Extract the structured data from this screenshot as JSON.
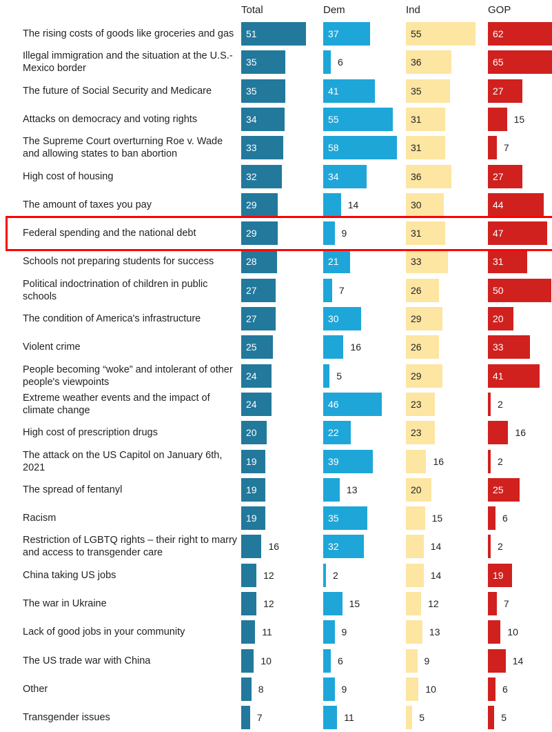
{
  "chart_data": {
    "type": "bar",
    "orientation": "horizontal",
    "columns": [
      "Total",
      "Dem",
      "Ind",
      "GOP"
    ],
    "colors": {
      "Total": "#22799c",
      "Dem": "#1ea6d9",
      "Ind": "#fde5a2",
      "GOP": "#d0211f",
      "highlight": "#ff0000"
    },
    "highlighted_category": "Federal spending and the national debt",
    "categories": [
      "The rising costs of goods like groceries and gas",
      "Illegal immigration and the situation at the U.S.-Mexico border",
      "The future of Social Security and Medicare",
      "Attacks on democracy and voting rights",
      "The Supreme Court overturning Roe v. Wade and allowing states to ban abortion",
      "High cost of housing",
      "The amount of taxes you pay",
      "Federal spending and the national debt",
      "Schools not preparing students for success",
      "Political indoctrination of children in public schools",
      "The condition of America's infrastructure",
      "Violent crime",
      "People becoming “woke” and intolerant of other people's viewpoints",
      "Extreme weather events and the impact of climate change",
      "High cost of prescription drugs",
      "The attack on the US Capitol on January 6th, 2021",
      "The spread of fentanyl",
      "Racism",
      "Restriction of LGBTQ rights – their right to marry and access to transgender care",
      "China taking US jobs",
      "The war in Ukraine",
      "Lack of good jobs in your community",
      "The US trade war with China",
      "Other",
      "Transgender issues"
    ],
    "series": [
      {
        "name": "Total",
        "values": [
          51,
          35,
          35,
          34,
          33,
          32,
          29,
          29,
          28,
          27,
          27,
          25,
          24,
          24,
          20,
          19,
          19,
          19,
          16,
          12,
          12,
          11,
          10,
          8,
          7
        ]
      },
      {
        "name": "Dem",
        "values": [
          37,
          6,
          41,
          55,
          58,
          34,
          14,
          9,
          21,
          7,
          30,
          16,
          5,
          46,
          22,
          39,
          13,
          35,
          32,
          2,
          15,
          9,
          6,
          9,
          11
        ]
      },
      {
        "name": "Ind",
        "values": [
          55,
          36,
          35,
          31,
          31,
          36,
          30,
          31,
          33,
          26,
          29,
          26,
          29,
          23,
          23,
          16,
          20,
          15,
          14,
          14,
          12,
          13,
          9,
          10,
          5
        ]
      },
      {
        "name": "GOP",
        "values": [
          62,
          65,
          27,
          15,
          7,
          27,
          44,
          47,
          31,
          50,
          20,
          33,
          41,
          2,
          16,
          2,
          25,
          6,
          2,
          19,
          7,
          10,
          14,
          6,
          5
        ]
      }
    ]
  }
}
